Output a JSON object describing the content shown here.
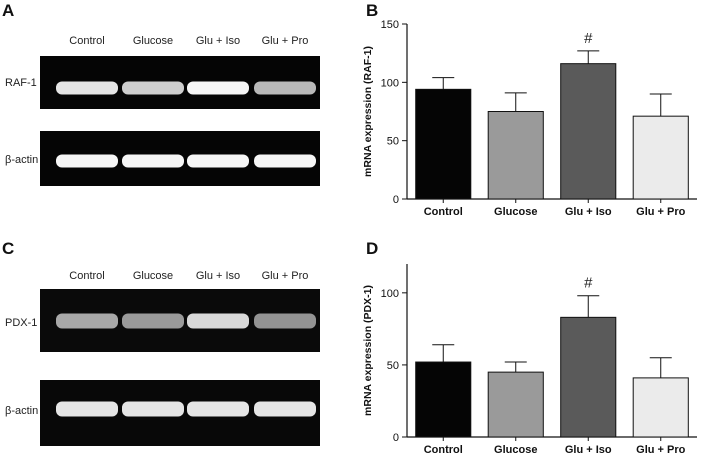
{
  "panels": {
    "A": {
      "letter": "A",
      "lanes": [
        "Control",
        "Glucose",
        "Glu + Iso",
        "Glu + Pro"
      ],
      "rows": [
        {
          "label": "RAF-1",
          "intensity": [
            0.85,
            0.72,
            0.95,
            0.6
          ]
        },
        {
          "label": "β-actin",
          "intensity": [
            0.95,
            0.95,
            0.95,
            0.95
          ]
        }
      ]
    },
    "C": {
      "letter": "C",
      "lanes": [
        "Control",
        "Glucose",
        "Glu + Iso",
        "Glu + Pro"
      ],
      "rows": [
        {
          "label": "PDX-1",
          "intensity": [
            0.5,
            0.42,
            0.78,
            0.38
          ]
        },
        {
          "label": "β-actin",
          "intensity": [
            0.85,
            0.85,
            0.85,
            0.85
          ]
        }
      ]
    }
  },
  "chart_data": [
    {
      "panel": "B",
      "type": "bar",
      "categories": [
        "Control",
        "Glucose",
        "Glu + Iso",
        "Glu + Pro"
      ],
      "values": [
        94,
        75,
        116,
        71
      ],
      "errors": [
        10,
        16,
        11,
        19
      ],
      "colors": [
        "#050505",
        "#9a9a9a",
        "#5a5a5a",
        "#ebebeb"
      ],
      "ylabel": "mRNA expression (RAF-1)",
      "ylim": [
        0,
        150
      ],
      "yticks": [
        0,
        50,
        100,
        150
      ],
      "annotations": [
        {
          "category": "Glu + Iso",
          "text": "#"
        }
      ]
    },
    {
      "panel": "D",
      "type": "bar",
      "categories": [
        "Control",
        "Glucose",
        "Glu + Iso",
        "Glu + Pro"
      ],
      "values": [
        52,
        45,
        83,
        41
      ],
      "errors": [
        12,
        7,
        15,
        14
      ],
      "colors": [
        "#050505",
        "#9a9a9a",
        "#5a5a5a",
        "#ebebeb"
      ],
      "ylabel": "mRNA expression (PDX-1)",
      "ylim": [
        0,
        120
      ],
      "yticks": [
        0,
        50,
        100
      ],
      "annotations": [
        {
          "category": "Glu + Iso",
          "text": "#"
        }
      ]
    }
  ]
}
